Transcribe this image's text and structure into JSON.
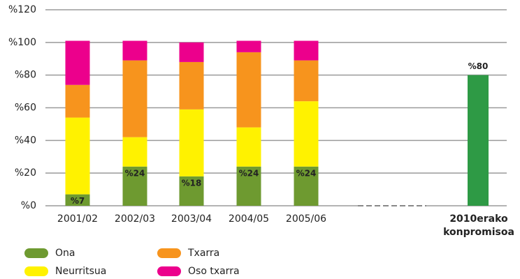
{
  "chart_data": {
    "type": "stacked_bar",
    "categories": [
      "2001/02",
      "2002/03",
      "2003/04",
      "2004/05",
      "2005/06",
      "2010erako konpromisoa"
    ],
    "series": [
      {
        "name": "Ona",
        "color": "#6e9a30",
        "values": [
          7,
          24,
          18,
          24,
          24,
          80
        ],
        "value_labels": [
          "%7",
          "%24",
          "%18",
          "%24",
          "%24",
          "%80"
        ]
      },
      {
        "name": "Neurritsua",
        "color": "#fff200",
        "values": [
          47,
          18,
          41,
          24,
          40,
          null
        ]
      },
      {
        "name": "Txarra",
        "color": "#f7941d",
        "values": [
          20,
          47,
          29,
          46,
          25,
          null
        ]
      },
      {
        "name": "Oso txarra",
        "color": "#ec008c",
        "values": [
          27,
          12,
          12,
          7,
          12,
          null
        ]
      }
    ],
    "target_color": "#2e9a45",
    "ylim": [
      0,
      120
    ],
    "yticks": [
      {
        "value": 0,
        "label": "%0"
      },
      {
        "value": 20,
        "label": "%20"
      },
      {
        "value": 40,
        "label": "%40"
      },
      {
        "value": 60,
        "label": "%60"
      },
      {
        "value": 80,
        "label": "%80"
      },
      {
        "value": 100,
        "label": "%100"
      },
      {
        "value": 120,
        "label": "%120"
      }
    ],
    "grid": true
  }
}
